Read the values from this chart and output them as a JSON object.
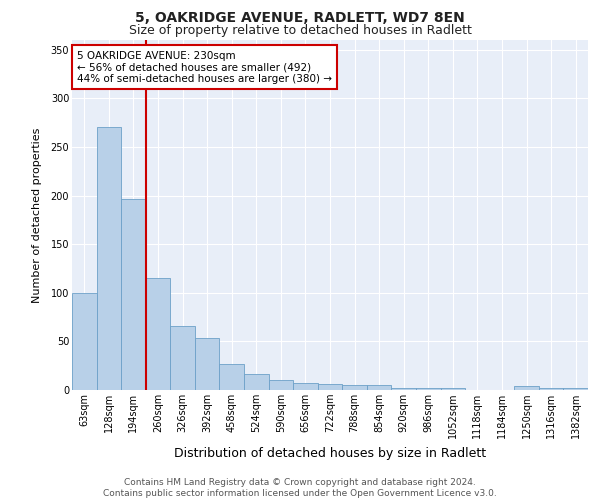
{
  "title1": "5, OAKRIDGE AVENUE, RADLETT, WD7 8EN",
  "title2": "Size of property relative to detached houses in Radlett",
  "xlabel": "Distribution of detached houses by size in Radlett",
  "ylabel": "Number of detached properties",
  "bar_labels": [
    "63sqm",
    "128sqm",
    "194sqm",
    "260sqm",
    "326sqm",
    "392sqm",
    "458sqm",
    "524sqm",
    "590sqm",
    "656sqm",
    "722sqm",
    "788sqm",
    "854sqm",
    "920sqm",
    "986sqm",
    "1052sqm",
    "1118sqm",
    "1184sqm",
    "1250sqm",
    "1316sqm",
    "1382sqm"
  ],
  "bar_values": [
    100,
    271,
    196,
    115,
    66,
    54,
    27,
    16,
    10,
    7,
    6,
    5,
    5,
    2,
    2,
    2,
    0,
    0,
    4,
    2,
    2
  ],
  "bar_color": "#b8d0e8",
  "bar_edge_color": "#6ca0c8",
  "vline_color": "#cc0000",
  "annotation_text": "5 OAKRIDGE AVENUE: 230sqm\n← 56% of detached houses are smaller (492)\n44% of semi-detached houses are larger (380) →",
  "annotation_box_color": "#ffffff",
  "annotation_box_edge_color": "#cc0000",
  "ylim": [
    0,
    360
  ],
  "yticks": [
    0,
    50,
    100,
    150,
    200,
    250,
    300,
    350
  ],
  "bg_color": "#e8eef8",
  "footer_text": "Contains HM Land Registry data © Crown copyright and database right 2024.\nContains public sector information licensed under the Open Government Licence v3.0.",
  "title1_fontsize": 10,
  "title2_fontsize": 9,
  "xlabel_fontsize": 9,
  "ylabel_fontsize": 8,
  "tick_fontsize": 7,
  "ann_fontsize": 7.5,
  "footer_fontsize": 6.5
}
